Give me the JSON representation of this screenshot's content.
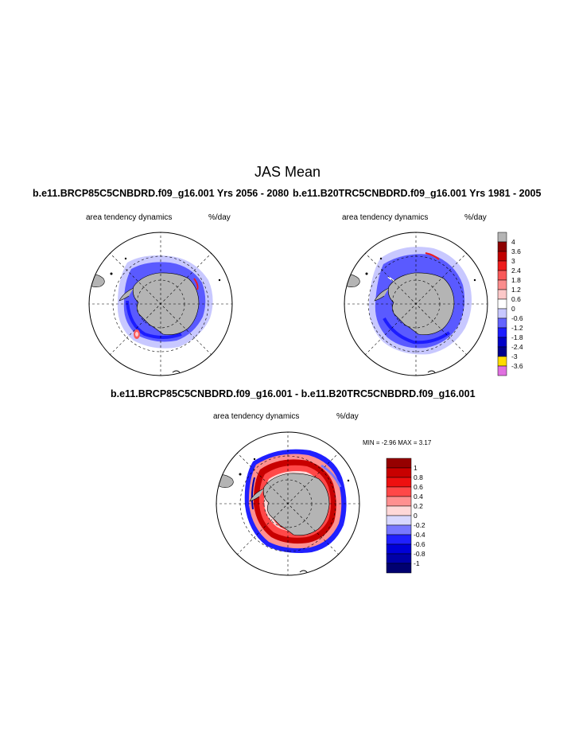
{
  "figure": {
    "title": "JAS Mean",
    "panels": [
      {
        "case_title": "b.e11.BRCP85C5CNBDRD.f09_g16.001  Yrs 2056 - 2080",
        "left_label": "area tendency dynamics",
        "right_label": "%/day"
      },
      {
        "case_title": "b.e11.B20TRC5CNBDRD.f09_g16.001  Yrs 1981 - 2005",
        "left_label": "area tendency dynamics",
        "right_label": "%/day"
      }
    ],
    "diff_panel": {
      "case_title": "b.e11.BRCP85C5CNBDRD.f09_g16.001 - b.e11.B20TRC5CNBDRD.f09_g16.001",
      "left_label": "area tendency dynamics",
      "right_label": "%/day",
      "min_label": "MIN =",
      "min_value": "-2.96",
      "max_label": "MAX =",
      "max_value": "3.17"
    },
    "colorbar_top": {
      "labels": [
        "4",
        "3.6",
        "3",
        "2.4",
        "1.8",
        "1.2",
        "0.6",
        "0",
        "-0.6",
        "-1.2",
        "-1.8",
        "-2.4",
        "-3",
        "-3.6"
      ],
      "colors": [
        "#b4b4b4",
        "#8c0000",
        "#c00000",
        "#ee1c1c",
        "#f85858",
        "#fa8c8c",
        "#fcc8c8",
        "#ffffff",
        "#c8c8ff",
        "#6464ff",
        "#1c1cff",
        "#0000c8",
        "#00008c",
        "#ffdc00",
        "#e070e0"
      ]
    },
    "colorbar_diff": {
      "labels": [
        "1",
        "0.8",
        "0.6",
        "0.4",
        "0.2",
        "0",
        "-0.2",
        "-0.4",
        "-0.6",
        "-0.8",
        "-1"
      ],
      "colors": [
        "#960000",
        "#c80000",
        "#ee1010",
        "#ff4848",
        "#ff9090",
        "#ffd8d8",
        "#d8d8ff",
        "#7878ff",
        "#2020ff",
        "#0000d8",
        "#0000a8",
        "#000070"
      ]
    }
  }
}
